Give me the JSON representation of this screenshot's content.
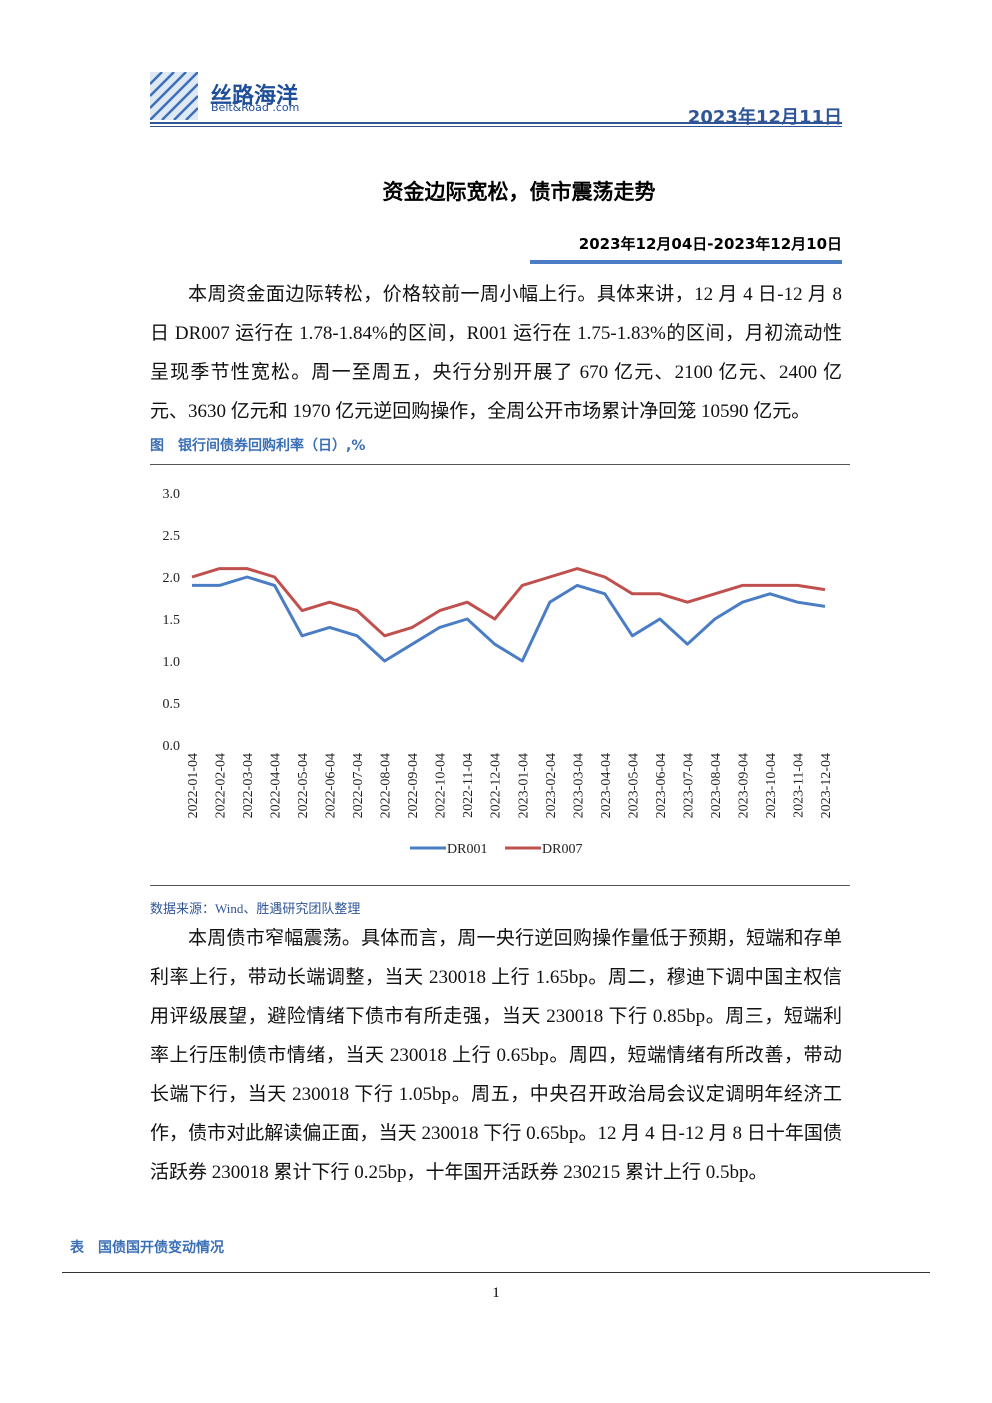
{
  "header": {
    "logo_cn": "丝路海洋",
    "logo_en": "Belt&Road .com",
    "date": "2023年12月11日"
  },
  "title": "资金边际宽松，债市震荡走势",
  "period": "2023年12月04日-2023年12月10日",
  "paragraphs": [
    "本周资金面边际转松，价格较前一周小幅上行。具体来讲，12 月 4 日-12 月 8 日 DR007 运行在 1.78-1.84%的区间，R001 运行在 1.75-1.83%的区间，月初流动性呈现季节性宽松。周一至周五，央行分别开展了 670 亿元、2100 亿元、2400 亿元、3630 亿元和 1970 亿元逆回购操作，全周公开市场累计净回笼 10590 亿元。",
    "本周债市窄幅震荡。具体而言，周一央行逆回购操作量低于预期，短端和存单利率上行，带动长端调整，当天 230018 上行 1.65bp。周二，穆迪下调中国主权信用评级展望，避险情绪下债市有所走强，当天 230018 下行 0.85bp。周三，短端利率上行压制债市情绪，当天 230018 上行 0.65bp。周四，短端情绪有所改善，带动长端下行，当天 230018 下行 1.05bp。周五，中央召开政治局会议定调明年经济工作，债市对此解读偏正面，当天 230018 下行 0.65bp。12 月 4 日-12 月 8 日十年国债活跃券 230018 累计下行 0.25bp，十年国开活跃券 230215 累计上行 0.5bp。"
  ],
  "figure_caption": "图　银行间债券回购利率（日）,%",
  "source": "数据来源：Wind、胜遇研究团队整理",
  "table_caption": "表　国债国开债变动情况",
  "page_number": "1",
  "chart_data": {
    "type": "line",
    "categories": [
      "2022-01-04",
      "2022-02-04",
      "2022-03-04",
      "2022-04-04",
      "2022-05-04",
      "2022-06-04",
      "2022-07-04",
      "2022-08-04",
      "2022-09-04",
      "2022-10-04",
      "2022-11-04",
      "2022-12-04",
      "2023-01-04",
      "2023-02-04",
      "2023-03-04",
      "2023-04-04",
      "2023-05-04",
      "2023-06-04",
      "2023-07-04",
      "2023-08-04",
      "2023-09-04",
      "2023-10-04",
      "2023-11-04",
      "2023-12-04"
    ],
    "series": [
      {
        "name": "DR001",
        "color": "#4a7dc4",
        "values": [
          1.9,
          1.9,
          2.0,
          1.9,
          1.3,
          1.4,
          1.3,
          1.0,
          1.2,
          1.4,
          1.5,
          1.2,
          1.0,
          1.7,
          1.9,
          1.8,
          1.3,
          1.5,
          1.2,
          1.5,
          1.7,
          1.8,
          1.7,
          1.65
        ]
      },
      {
        "name": "DR007",
        "color": "#c0504d",
        "values": [
          2.0,
          2.1,
          2.1,
          2.0,
          1.6,
          1.7,
          1.6,
          1.3,
          1.4,
          1.6,
          1.7,
          1.5,
          1.9,
          2.0,
          2.1,
          2.0,
          1.8,
          1.8,
          1.7,
          1.8,
          1.9,
          1.9,
          1.9,
          1.85
        ]
      }
    ],
    "ylim": [
      0,
      3
    ],
    "yticks": [
      {
        "value": 0,
        "label": "0.0"
      },
      {
        "value": 0.5,
        "label": "0.5"
      },
      {
        "value": 1,
        "label": "1.0"
      },
      {
        "value": 1.5,
        "label": "1.5"
      },
      {
        "value": 2,
        "label": "2.0"
      },
      {
        "value": 2.5,
        "label": "2.5"
      },
      {
        "value": 3,
        "label": "3.0"
      }
    ],
    "legend": "bottom"
  }
}
